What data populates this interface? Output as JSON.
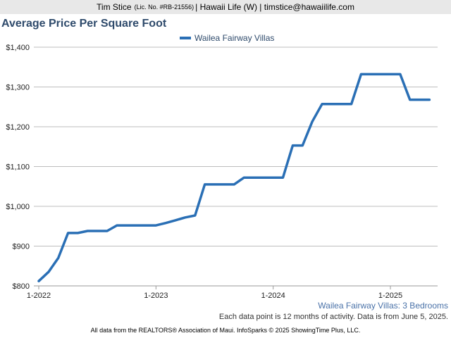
{
  "header": {
    "agent_name": "Tim Stice",
    "license": "(Lic. No. #RB-21556)",
    "details": "| Hawaii Life (W) | timstice@hawaiilife.com"
  },
  "chart_data": {
    "type": "line",
    "title": "Average Price Per Square Foot",
    "xlabel": "",
    "ylabel": "",
    "ylim": [
      800,
      1400
    ],
    "yticks": [
      800,
      900,
      1000,
      1100,
      1200,
      1300,
      1400
    ],
    "ytick_labels": [
      "$800",
      "$900",
      "$1,000",
      "$1,100",
      "$1,200",
      "$1,300",
      "$1,400"
    ],
    "xlim": [
      "2022-01",
      "2025-05"
    ],
    "xtick_labels": [
      "1-2022",
      "1-2023",
      "1-2024",
      "1-2025"
    ],
    "xtick_dates": [
      "2022-01",
      "2023-01",
      "2024-01",
      "2025-01"
    ],
    "grid": true,
    "legend_position": "top-center",
    "series": [
      {
        "name": "Wailea Fairway Villas",
        "color": "#2a6fb5",
        "x": [
          "2022-01",
          "2022-02",
          "2022-03",
          "2022-04",
          "2022-05",
          "2022-06",
          "2022-07",
          "2022-08",
          "2022-09",
          "2022-10",
          "2022-11",
          "2022-12",
          "2023-01",
          "2023-02",
          "2023-03",
          "2023-04",
          "2023-05",
          "2023-06",
          "2023-07",
          "2023-08",
          "2023-09",
          "2023-10",
          "2023-11",
          "2023-12",
          "2024-01",
          "2024-02",
          "2024-03",
          "2024-04",
          "2024-05",
          "2024-06",
          "2024-07",
          "2024-08",
          "2024-09",
          "2024-10",
          "2024-11",
          "2024-12",
          "2025-01",
          "2025-02",
          "2025-03",
          "2025-04",
          "2025-05"
        ],
        "values": [
          812,
          835,
          870,
          933,
          933,
          938,
          938,
          938,
          952,
          952,
          952,
          952,
          952,
          958,
          965,
          972,
          977,
          1055,
          1055,
          1055,
          1055,
          1072,
          1072,
          1072,
          1072,
          1072,
          1153,
          1153,
          1213,
          1257,
          1257,
          1257,
          1257,
          1332,
          1332,
          1332,
          1332,
          1332,
          1268,
          1268,
          1268
        ]
      }
    ]
  },
  "series_subtitle": "Wailea Fairway Villas: 3 Bedrooms",
  "note": "Each data point is 12 months of activity. Data is from June 5, 2025.",
  "footer": "All data from the REALTORS® Association of Maui. InfoSparks © 2025 ShowingTime Plus, LLC."
}
